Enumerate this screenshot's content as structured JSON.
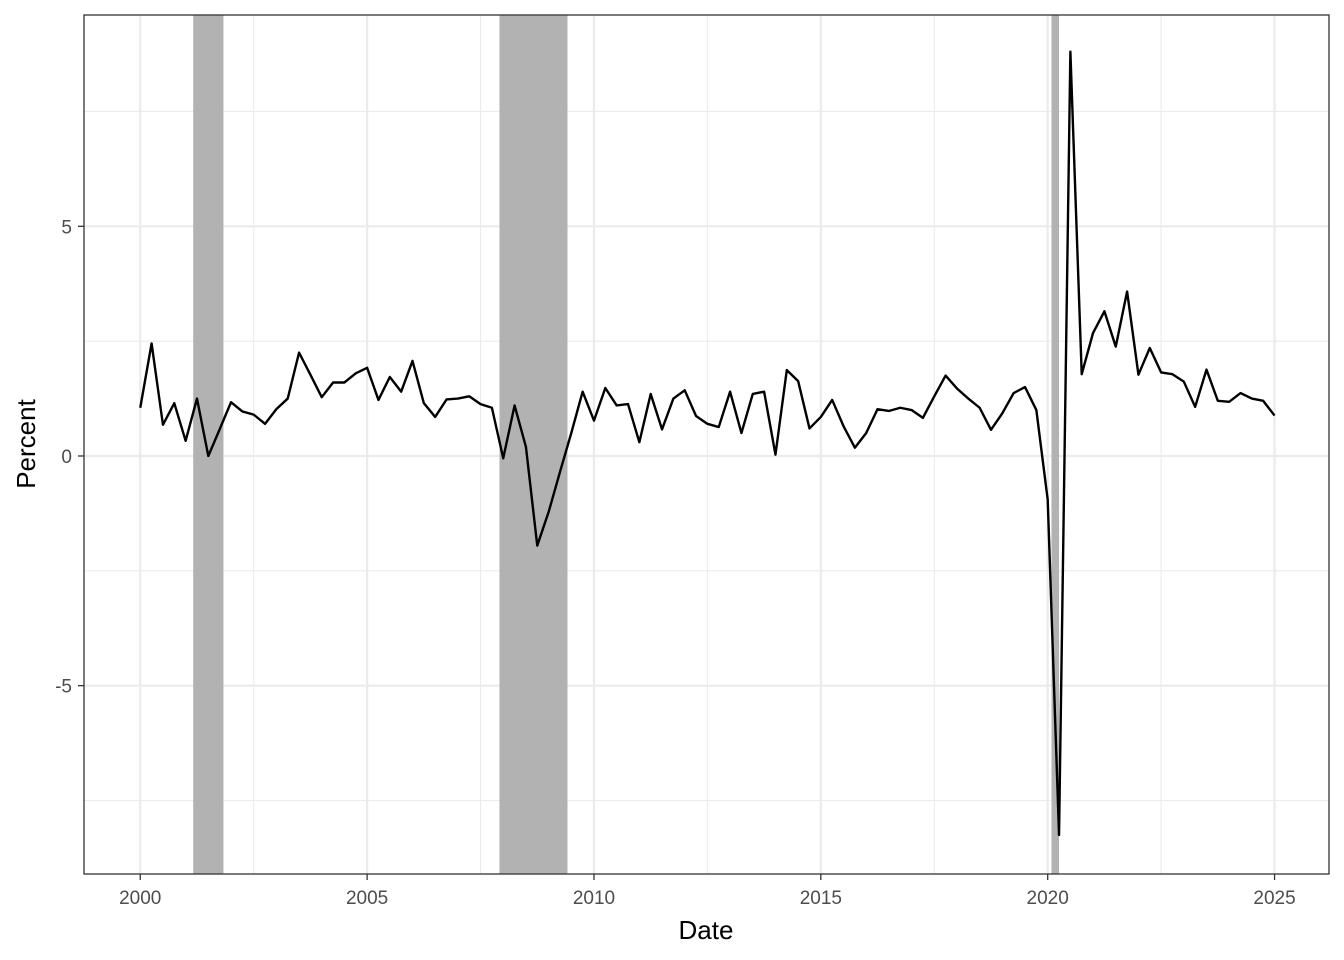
{
  "chart_data": {
    "type": "line",
    "title": "",
    "xlabel": "Date",
    "ylabel": "Percent",
    "xlim": [
      1998.76,
      2026.2
    ],
    "ylim": [
      -9.1,
      9.6
    ],
    "x_ticks": [
      2000,
      2005,
      2010,
      2015,
      2020,
      2025
    ],
    "x_tick_labels": [
      "2000",
      "2005",
      "2010",
      "2015",
      "2020",
      "2025"
    ],
    "x_minor_ticks": [
      2002.5,
      2007.5,
      2012.5,
      2017.5,
      2022.5
    ],
    "y_ticks": [
      -5,
      0,
      5
    ],
    "y_tick_labels": [
      "-5",
      "0",
      "5"
    ],
    "y_minor_ticks": [
      -7.5,
      -2.5,
      2.5,
      7.5
    ],
    "grid": true,
    "legend": "none",
    "line_color": "#000000",
    "shading_color": "#b2b2b2",
    "shaded_periods": [
      {
        "start": "2001-03",
        "end": "2001-11"
      },
      {
        "start": "2007-12",
        "end": "2009-06"
      },
      {
        "start": "2020-02",
        "end": "2020-04"
      }
    ],
    "series": [
      {
        "x": [
          "2000-Q1",
          "2000-Q2",
          "2000-Q3",
          "2000-Q4",
          "2001-Q1",
          "2001-Q2",
          "2001-Q3",
          "2001-Q4",
          "2002-Q1",
          "2002-Q2",
          "2002-Q3",
          "2002-Q4",
          "2003-Q1",
          "2003-Q2",
          "2003-Q3",
          "2003-Q4",
          "2004-Q1",
          "2004-Q2",
          "2004-Q3",
          "2004-Q4",
          "2005-Q1",
          "2005-Q2",
          "2005-Q3",
          "2005-Q4",
          "2006-Q1",
          "2006-Q2",
          "2006-Q3",
          "2006-Q4",
          "2007-Q1",
          "2007-Q2",
          "2007-Q3",
          "2007-Q4",
          "2008-Q1",
          "2008-Q2",
          "2008-Q3",
          "2008-Q4",
          "2009-Q1",
          "2009-Q2",
          "2009-Q3",
          "2009-Q4",
          "2010-Q1",
          "2010-Q2",
          "2010-Q3",
          "2010-Q4",
          "2011-Q1",
          "2011-Q2",
          "2011-Q3",
          "2011-Q4",
          "2012-Q1",
          "2012-Q2",
          "2012-Q3",
          "2012-Q4",
          "2013-Q1",
          "2013-Q2",
          "2013-Q3",
          "2013-Q4",
          "2014-Q1",
          "2014-Q2",
          "2014-Q3",
          "2014-Q4",
          "2015-Q1",
          "2015-Q2",
          "2015-Q3",
          "2015-Q4",
          "2016-Q1",
          "2016-Q2",
          "2016-Q3",
          "2016-Q4",
          "2017-Q1",
          "2017-Q2",
          "2017-Q3",
          "2017-Q4",
          "2018-Q1",
          "2018-Q2",
          "2018-Q3",
          "2018-Q4",
          "2019-Q1",
          "2019-Q2",
          "2019-Q3",
          "2019-Q4",
          "2020-Q1",
          "2020-Q2",
          "2020-Q3",
          "2020-Q4",
          "2021-Q1",
          "2021-Q2",
          "2021-Q3",
          "2021-Q4",
          "2022-Q1",
          "2022-Q2",
          "2022-Q3",
          "2022-Q4",
          "2023-Q1",
          "2023-Q2",
          "2023-Q3",
          "2023-Q4",
          "2024-Q1",
          "2024-Q2",
          "2024-Q3",
          "2024-Q4",
          "2025-Q1"
        ],
        "values": [
          1.05,
          2.45,
          0.68,
          1.15,
          0.33,
          1.25,
          0.0,
          0.58,
          1.17,
          0.97,
          0.9,
          0.7,
          1.02,
          1.25,
          2.25,
          1.77,
          1.28,
          1.6,
          1.6,
          1.8,
          1.92,
          1.22,
          1.72,
          1.4,
          2.07,
          1.15,
          0.85,
          1.23,
          1.25,
          1.3,
          1.13,
          1.05,
          -0.05,
          1.1,
          0.2,
          -1.95,
          -1.22,
          -0.35,
          0.5,
          1.4,
          0.77,
          1.48,
          1.1,
          1.13,
          0.3,
          1.35,
          0.58,
          1.25,
          1.43,
          0.87,
          0.7,
          0.63,
          1.4,
          0.5,
          1.35,
          1.4,
          0.03,
          1.87,
          1.63,
          0.6,
          0.85,
          1.22,
          0.65,
          0.18,
          0.5,
          1.02,
          0.98,
          1.05,
          1.0,
          0.83,
          1.3,
          1.75,
          1.47,
          1.25,
          1.05,
          0.57,
          0.93,
          1.37,
          1.5,
          1.0,
          -0.95,
          -8.25,
          8.8,
          1.78,
          2.68,
          3.15,
          2.38,
          3.58,
          1.77,
          2.35,
          1.82,
          1.78,
          1.62,
          1.07,
          1.88,
          1.2,
          1.18,
          1.37,
          1.25,
          1.2,
          0.88
        ]
      }
    ]
  }
}
